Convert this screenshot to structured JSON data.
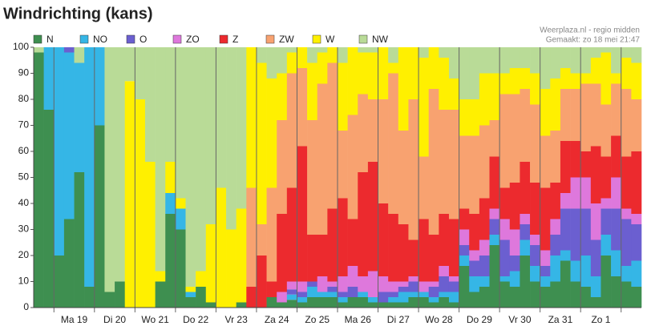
{
  "chart_data": {
    "type": "stacked-bar",
    "title": "Windrichting (kans)",
    "source": "Weerplaza.nl - regio midden",
    "created": "Gemaakt: zo 18 mei 21:47",
    "categories": [
      null,
      null,
      null,
      null,
      "Ma 19",
      null,
      null,
      null,
      "Di 20",
      null,
      null,
      null,
      "Wo 21",
      null,
      null,
      null,
      "Do 22",
      null,
      null,
      null,
      "Vr 23",
      null,
      null,
      null,
      "Za 24",
      null,
      null,
      null,
      "Zo 25",
      null,
      null,
      null,
      "Ma 26",
      null,
      null,
      null,
      "Di 27",
      null,
      null,
      null,
      "Wo 28",
      null,
      null,
      null,
      "Do 29",
      null,
      null,
      null,
      "Vr 30",
      null,
      null,
      null,
      "Za 31",
      null,
      null,
      null,
      "Zo 1",
      null,
      null,
      null
    ],
    "series": [
      {
        "name": "N",
        "color": "#3e8f50",
        "values": [
          98,
          76,
          20,
          34,
          52,
          8,
          70,
          6,
          10,
          0,
          0,
          0,
          10,
          36,
          30,
          4,
          8,
          2,
          0,
          0,
          2,
          0,
          0,
          4,
          2,
          3,
          2,
          4,
          4,
          4,
          2,
          4,
          4,
          2,
          2,
          2,
          2,
          4,
          4,
          2,
          4,
          2,
          16,
          6,
          8,
          24,
          10,
          8,
          20,
          10,
          8,
          10,
          18,
          10,
          8,
          4,
          20,
          12,
          10,
          8
        ]
      },
      {
        "name": "NO",
        "color": "#35b6e6",
        "values": [
          0,
          24,
          80,
          64,
          42,
          92,
          30,
          0,
          0,
          0,
          0,
          0,
          0,
          8,
          8,
          2,
          0,
          0,
          0,
          0,
          0,
          0,
          0,
          0,
          0,
          2,
          2,
          4,
          2,
          2,
          2,
          0,
          2,
          2,
          0,
          2,
          4,
          2,
          2,
          2,
          2,
          4,
          4,
          6,
          4,
          4,
          2,
          6,
          6,
          6,
          4,
          10,
          4,
          8,
          12,
          8,
          8,
          10,
          6,
          10
        ]
      },
      {
        "name": "O",
        "color": "#6b5fd0",
        "values": [
          0,
          0,
          0,
          2,
          0,
          0,
          0,
          0,
          0,
          0,
          0,
          0,
          0,
          0,
          0,
          0,
          0,
          0,
          0,
          0,
          0,
          0,
          0,
          0,
          0,
          2,
          2,
          2,
          0,
          2,
          2,
          4,
          0,
          0,
          4,
          2,
          2,
          4,
          0,
          4,
          6,
          4,
          4,
          6,
          8,
          6,
          14,
          6,
          6,
          8,
          4,
          8,
          16,
          20,
          18,
          14,
          10,
          16,
          18,
          14
        ]
      },
      {
        "name": "ZO",
        "color": "#de78dc",
        "values": [
          0,
          0,
          0,
          0,
          0,
          0,
          0,
          0,
          0,
          0,
          0,
          0,
          0,
          0,
          0,
          0,
          0,
          0,
          0,
          0,
          0,
          0,
          0,
          0,
          4,
          3,
          4,
          0,
          6,
          2,
          6,
          8,
          6,
          10,
          6,
          4,
          2,
          2,
          4,
          2,
          4,
          2,
          6,
          4,
          6,
          4,
          8,
          10,
          4,
          4,
          6,
          6,
          6,
          12,
          12,
          14,
          4,
          12,
          4,
          4
        ]
      },
      {
        "name": "Z",
        "color": "#ec2a2e",
        "values": [
          0,
          0,
          0,
          0,
          0,
          0,
          0,
          0,
          0,
          0,
          0,
          0,
          0,
          0,
          0,
          0,
          0,
          0,
          0,
          0,
          0,
          8,
          20,
          6,
          30,
          36,
          52,
          18,
          16,
          28,
          30,
          18,
          40,
          42,
          28,
          26,
          22,
          14,
          24,
          18,
          20,
          22,
          8,
          14,
          16,
          20,
          12,
          18,
          20,
          20,
          24,
          14,
          20,
          14,
          10,
          22,
          16,
          16,
          20,
          24
        ]
      },
      {
        "name": "ZW",
        "color": "#f8a270",
        "values": [
          0,
          0,
          0,
          0,
          0,
          0,
          0,
          0,
          0,
          0,
          0,
          0,
          0,
          0,
          0,
          0,
          0,
          0,
          0,
          0,
          0,
          38,
          12,
          36,
          36,
          44,
          30,
          44,
          58,
          56,
          26,
          40,
          30,
          24,
          40,
          54,
          36,
          54,
          24,
          56,
          40,
          42,
          28,
          30,
          28,
          14,
          36,
          34,
          28,
          30,
          20,
          20,
          20,
          20,
          26,
          24,
          20,
          20,
          26,
          20
        ]
      },
      {
        "name": "W",
        "color": "#fff000",
        "values": [
          0,
          0,
          0,
          0,
          0,
          0,
          0,
          0,
          0,
          87,
          80,
          56,
          4,
          12,
          4,
          2,
          6,
          30,
          46,
          30,
          36,
          54,
          62,
          42,
          18,
          8,
          8,
          22,
          12,
          6,
          26,
          26,
          16,
          18,
          20,
          4,
          32,
          20,
          38,
          16,
          20,
          12,
          14,
          14,
          20,
          18,
          8,
          10,
          8,
          12,
          18,
          20,
          8,
          6,
          4,
          10,
          20,
          4,
          12,
          14
        ]
      },
      {
        "name": "NW",
        "color": "#b9db97",
        "values": [
          2,
          0,
          0,
          0,
          6,
          0,
          0,
          94,
          90,
          13,
          20,
          44,
          86,
          44,
          58,
          92,
          86,
          68,
          54,
          70,
          62,
          0,
          6,
          12,
          10,
          2,
          0,
          6,
          2,
          0,
          6,
          0,
          2,
          2,
          0,
          6,
          0,
          0,
          4,
          0,
          4,
          12,
          20,
          20,
          10,
          10,
          10,
          8,
          8,
          10,
          16,
          12,
          8,
          10,
          10,
          4,
          2,
          10,
          4,
          6
        ]
      }
    ],
    "ylim": [
      0,
      100
    ],
    "yticks": [
      0,
      10,
      20,
      30,
      40,
      50,
      60,
      70,
      80,
      90,
      100
    ]
  }
}
